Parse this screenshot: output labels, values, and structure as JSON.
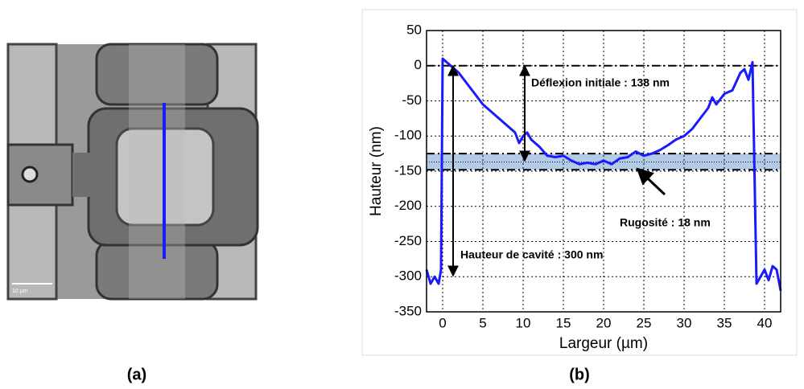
{
  "panel_a": {
    "label": "(a)",
    "scale_bar": "10 µm"
  },
  "panel_b": {
    "label": "(b)"
  },
  "chart_data": {
    "type": "line",
    "xlabel": "Largeur (µm)",
    "ylabel": "Hauteur (nm)",
    "xlim": [
      -2,
      42
    ],
    "xticks": [
      0,
      5,
      10,
      15,
      20,
      25,
      30,
      35,
      40
    ],
    "ylim": [
      -350,
      50
    ],
    "yticks": [
      -350,
      -300,
      -250,
      -200,
      -150,
      -100,
      -50,
      0,
      50
    ],
    "grid": true,
    "color": "#1a1aff",
    "x": [
      -2,
      -1.5,
      -1,
      -0.5,
      -0.2,
      0,
      0.5,
      1,
      2,
      3,
      4,
      5,
      6,
      7,
      8,
      9,
      9.5,
      10,
      10.5,
      11,
      12,
      13,
      14,
      15,
      16,
      17,
      18,
      19,
      20,
      21,
      22,
      23,
      24,
      25,
      26,
      27,
      28,
      29,
      30,
      31,
      32,
      33,
      33.5,
      34,
      35,
      36,
      37,
      37.5,
      38,
      38.5,
      39,
      39.5,
      40,
      40.5,
      41,
      41.5,
      42
    ],
    "values": [
      -290,
      -310,
      -300,
      -310,
      -290,
      10,
      5,
      0,
      -10,
      -25,
      -40,
      -55,
      -65,
      -75,
      -85,
      -95,
      -110,
      -100,
      -95,
      -105,
      -115,
      -128,
      -130,
      -128,
      -135,
      -140,
      -138,
      -140,
      -135,
      -140,
      -132,
      -130,
      -122,
      -128,
      -125,
      -120,
      -113,
      -105,
      -100,
      -90,
      -75,
      -60,
      -45,
      -55,
      -40,
      -35,
      -10,
      -5,
      -20,
      5,
      -310,
      -300,
      -290,
      -305,
      -285,
      -290,
      -320
    ],
    "hlines": [
      0,
      -125,
      -148
    ],
    "band": [
      -148,
      -125
    ],
    "center_line": -137,
    "annotations": [
      "Déflexion initiale : 138 nm",
      "Rugosité : 18 nm",
      "Hauteur de cavité : 300 nm"
    ]
  }
}
